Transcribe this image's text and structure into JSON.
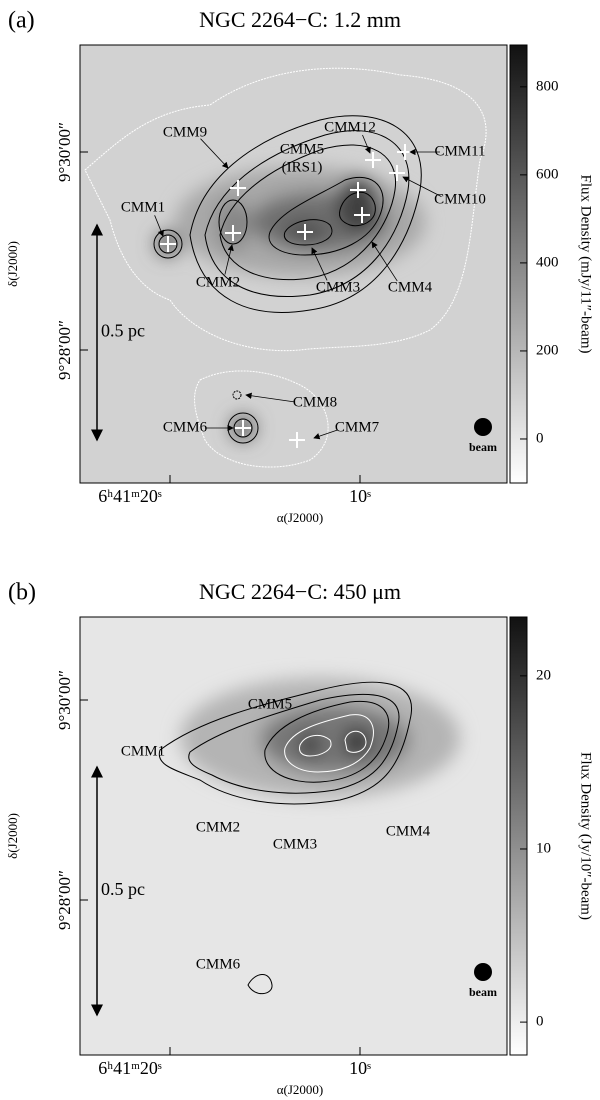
{
  "panels": [
    {
      "label": "(a)",
      "title": "NGC 2264−C: 1.2 mm",
      "colorbar_label": "Flux Density (mJy/11″-beam)",
      "colorbar_lim": [
        -100,
        895
      ],
      "colorbar_ticks": [
        0,
        200,
        400,
        600,
        800
      ],
      "dec_ticks": [
        "9°30′00″",
        "9°28′00″"
      ],
      "ra_ticks": [
        "6ʰ41ᵐ20ˢ",
        "10ˢ"
      ],
      "x_label": "α(J2000)",
      "y_label": "δ(J2000)",
      "scale_bar": "0.5 pc",
      "beam": "beam",
      "sources": [
        "CMM9",
        "CMM12",
        "CMM5",
        "(IRS1)",
        "CMM11",
        "CMM10",
        "CMM1",
        "CMM2",
        "CMM3",
        "CMM4",
        "CMM8",
        "CMM6",
        "CMM7"
      ]
    },
    {
      "label": "(b)",
      "title": "NGC 2264−C: 450 μm",
      "colorbar_label": "Flux Density (Jy/10″-beam)",
      "colorbar_lim": [
        -1.9,
        23.4
      ],
      "colorbar_ticks": [
        0,
        10,
        20
      ],
      "dec_ticks": [
        "9°30′00″",
        "9°28′00″"
      ],
      "ra_ticks": [
        "6ʰ41ᵐ20ˢ",
        "10ˢ"
      ],
      "x_label": "α(J2000)",
      "y_label": "δ(J2000)",
      "scale_bar": "0.5 pc",
      "beam": "beam",
      "sources": [
        "CMM5",
        "CMM1",
        "CMM2",
        "CMM3",
        "CMM4",
        "CMM6"
      ]
    }
  ]
}
